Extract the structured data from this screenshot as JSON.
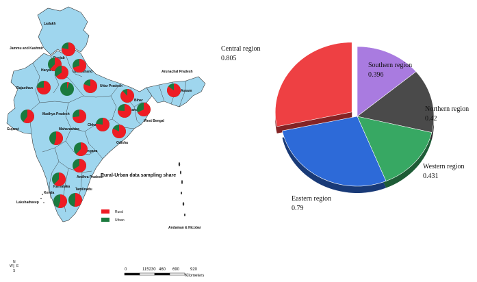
{
  "map": {
    "labels": [
      {
        "name": "Ladakh",
        "ox": 0,
        "oy": 0
      },
      {
        "name": "Jammu and Kashmir"
      },
      {
        "name": "Punjab"
      },
      {
        "name": "Haryana"
      },
      {
        "name": "Uttarakhand"
      },
      {
        "name": "Rajasthan"
      },
      {
        "name": "Uttar Pradesh"
      },
      {
        "name": "Arunachal Pradesh"
      },
      {
        "name": "Assam"
      },
      {
        "name": "Bihar"
      },
      {
        "name": "Madhya Pradesh"
      },
      {
        "name": "Gujarat"
      },
      {
        "name": "Jharkhand"
      },
      {
        "name": "West Bengal"
      },
      {
        "name": "Chhattisgarh"
      },
      {
        "name": "Maharashtra"
      },
      {
        "name": "Odisha"
      },
      {
        "name": "Telangana"
      },
      {
        "name": "Andhra Pradesh"
      },
      {
        "name": "Karnataka"
      },
      {
        "name": "Tamilnadu"
      },
      {
        "name": "Kerala"
      },
      {
        "name": "Lakshadweep"
      },
      {
        "name": "Andaman & Nicobar"
      }
    ],
    "markers": [
      {
        "state": "Jammu and Kashmir",
        "rural": 0.78
      },
      {
        "state": "Punjab",
        "rural": 0.62
      },
      {
        "state": "Haryana",
        "rural": 0.65
      },
      {
        "state": "Uttarakhand",
        "rural": 0.7
      },
      {
        "state": "Delhi",
        "rural": 0.05
      },
      {
        "state": "Rajasthan",
        "rural": 0.75
      },
      {
        "state": "Uttar Pradesh",
        "rural": 0.8
      },
      {
        "state": "Bihar",
        "rural": 0.88
      },
      {
        "state": "Assam",
        "rural": 0.85
      },
      {
        "state": "Gujarat",
        "rural": 0.6
      },
      {
        "state": "Madhya Pradesh",
        "rural": 0.73
      },
      {
        "state": "Jharkhand",
        "rural": 0.76
      },
      {
        "state": "West Bengal",
        "rural": 0.68
      },
      {
        "state": "Chhattisgarh",
        "rural": 0.77
      },
      {
        "state": "Maharashtra",
        "rural": 0.55
      },
      {
        "state": "Odisha",
        "rural": 0.82
      },
      {
        "state": "Telangana",
        "rural": 0.62
      },
      {
        "state": "Andhra Pradesh",
        "rural": 0.66
      },
      {
        "state": "Karnataka",
        "rural": 0.62
      },
      {
        "state": "Kerala",
        "rural": 0.55
      },
      {
        "state": "Tamilnadu",
        "rural": 0.52
      }
    ],
    "legend": {
      "title": "Rural-Urban data sampling share",
      "items": [
        {
          "label": "Rural",
          "color": "#ee1c24"
        },
        {
          "label": "Urban",
          "color": "#1b7a3e"
        }
      ]
    },
    "compass": [
      "W",
      "E",
      "N",
      "S"
    ],
    "scalebar": {
      "ticks": [
        "0",
        "115230",
        "460",
        "690",
        "920"
      ],
      "unit": "Kilometers"
    }
  },
  "chart_data": {
    "type": "pie",
    "style": "3d-exploded",
    "slices": [
      {
        "label": "Central region",
        "value": 0.805,
        "value_label": "0.805",
        "color": "#ee4043",
        "exploded": true
      },
      {
        "label": "Southern region",
        "value": 0.396,
        "value_label": "0.396",
        "color": "#a97be0",
        "exploded": false
      },
      {
        "label": "Northern region",
        "value": 0.42,
        "value_label": "0.42",
        "color": "#4a4a4a",
        "exploded": false
      },
      {
        "label": "Western region",
        "value": 0.431,
        "value_label": "0.431",
        "color": "#37a863",
        "exploded": false
      },
      {
        "label": "Eastern region",
        "value": 0.79,
        "value_label": "0.79",
        "color": "#2d6ad8",
        "exploded": false
      }
    ]
  }
}
